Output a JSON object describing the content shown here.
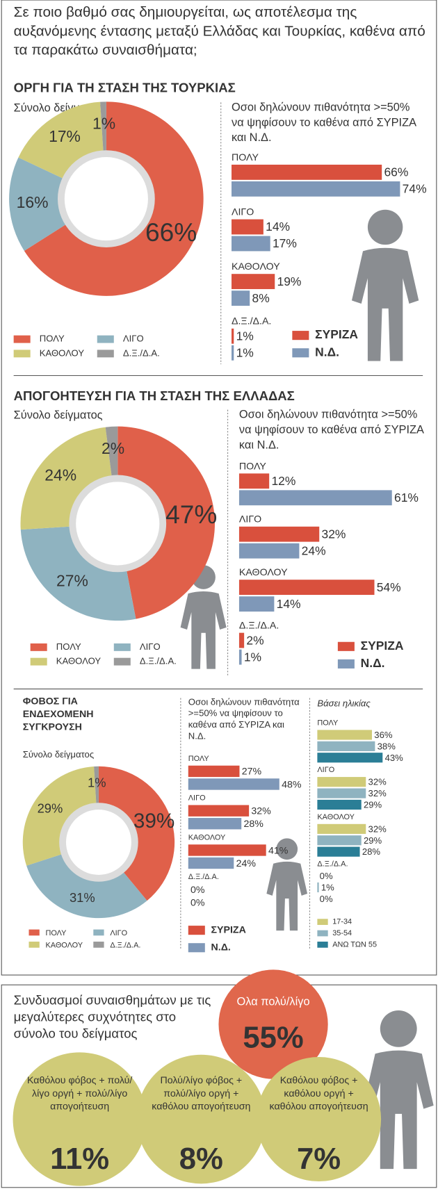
{
  "header": {
    "question": "Σε ποιο βαθμό σας δημιουργείται, ως αποτέλεσμα της αυξανόμενης έντασης μεταξύ Ελλάδας και Τουρκίας, καθένα από τα παρακάτω συναισθήματα;"
  },
  "sections": [
    "ΟΡΓΗ ΓΙΑ ΤΗ ΣΤΑΣΗ ΤΗΣ ΤΟΥΡΚΙΑΣ",
    "ΑΠΟΓΟΗΤΕΥΣΗ ΓΙΑ ΤΗ ΣΤΑΣΗ ΤΗΣ ΕΛΛΑΔΑΣ",
    "ΦΟΒΟΣ ΓΙΑ ΕΝΔΕΧΟΜΕΝΗ ΣΥΓΚΡΟΥΣΗ"
  ],
  "chart_data": [
    {
      "type": "pie",
      "title": "Σύνολο δείγματος",
      "categories": [
        "ΠΟΛΥ",
        "ΛΙΓΟ",
        "ΚΑΘΟΛΟΥ",
        "Δ.Ξ./Δ.Α."
      ],
      "values": [
        66,
        16,
        17,
        1
      ],
      "value_labels": [
        "66%",
        "16%",
        "17%",
        "1%"
      ],
      "colors": [
        "#e0604a",
        "#8fb3c0",
        "#d0cb78",
        "#9a9a9a"
      ]
    },
    {
      "type": "bar",
      "title": "Οσοι δηλώνουν πιθανότητα >=50% να ψηφίσουν το καθένα από ΣΥΡΙΖΑ και Ν.Δ.",
      "categories": [
        "ΠΟΛΥ",
        "ΛΙΓΟ",
        "ΚΑΘΟΛΟΥ",
        "Δ.Ξ./Δ.Α."
      ],
      "series": [
        {
          "name": "ΣΥΡΙΖΑ",
          "color": "#d9503d",
          "values": [
            66,
            14,
            19,
            1
          ],
          "value_labels": [
            "66%",
            "14%",
            "19%",
            "1%"
          ]
        },
        {
          "name": "Ν.Δ.",
          "color": "#7f98b8",
          "values": [
            74,
            17,
            8,
            1
          ],
          "value_labels": [
            "74%",
            "17%",
            "8%",
            "1%"
          ]
        }
      ]
    },
    {
      "type": "pie",
      "title": "Σύνολο δείγματος",
      "categories": [
        "ΠΟΛΥ",
        "ΛΙΓΟ",
        "ΚΑΘΟΛΟΥ",
        "Δ.Ξ./Δ.Α."
      ],
      "values": [
        47,
        27,
        24,
        2
      ],
      "value_labels": [
        "47%",
        "27%",
        "24%",
        "2%"
      ],
      "colors": [
        "#e0604a",
        "#8fb3c0",
        "#d0cb78",
        "#9a9a9a"
      ]
    },
    {
      "type": "bar",
      "title": "Οσοι δηλώνουν πιθανότητα >=50% να ψηφίσουν το καθένα από ΣΥΡΙΖΑ και Ν.Δ.",
      "categories": [
        "ΠΟΛΥ",
        "ΛΙΓΟ",
        "ΚΑΘΟΛΟΥ",
        "Δ.Ξ./Δ.Α."
      ],
      "series": [
        {
          "name": "ΣΥΡΙΖΑ",
          "color": "#d9503d",
          "values": [
            12,
            32,
            54,
            2
          ],
          "value_labels": [
            "12%",
            "32%",
            "54%",
            "2%"
          ]
        },
        {
          "name": "Ν.Δ.",
          "color": "#7f98b8",
          "values": [
            61,
            24,
            14,
            1
          ],
          "value_labels": [
            "61%",
            "24%",
            "14%",
            "1%"
          ]
        }
      ]
    },
    {
      "type": "pie",
      "title": "Σύνολο δείγματος",
      "categories": [
        "ΠΟΛΥ",
        "ΛΙΓΟ",
        "ΚΑΘΟΛΟΥ",
        "Δ.Ξ./Δ.Α."
      ],
      "values": [
        39,
        31,
        29,
        1
      ],
      "value_labels": [
        "39%",
        "31%",
        "29%",
        "1%"
      ],
      "colors": [
        "#e0604a",
        "#8fb3c0",
        "#d0cb78",
        "#9a9a9a"
      ]
    },
    {
      "type": "bar",
      "title": "Οσοι δηλώνουν πιθανότητα >=50% να ψηφίσουν το καθένα από ΣΥΡΙΖΑ και Ν.Δ.",
      "categories": [
        "ΠΟΛΥ",
        "ΛΙΓΟ",
        "ΚΑΘΟΛΟΥ",
        "Δ.Ξ./Δ.Α."
      ],
      "series": [
        {
          "name": "ΣΥΡΙΖΑ",
          "color": "#d9503d",
          "values": [
            27,
            32,
            41,
            0
          ],
          "value_labels": [
            "27%",
            "32%",
            "41%",
            "0%"
          ]
        },
        {
          "name": "Ν.Δ.",
          "color": "#7f98b8",
          "values": [
            48,
            28,
            24,
            0
          ],
          "value_labels": [
            "48%",
            "28%",
            "24%",
            "0%"
          ]
        }
      ]
    },
    {
      "type": "bar",
      "title": "Βάσει ηλικίας",
      "categories": [
        "ΠΟΛΥ",
        "ΛΙΓΟ",
        "ΚΑΘΟΛΟΥ",
        "Δ.Ξ./Δ.Α."
      ],
      "series": [
        {
          "name": "17-34",
          "color": "#d0cb78",
          "values": [
            36,
            32,
            32,
            0
          ],
          "value_labels": [
            "36%",
            "32%",
            "32%",
            "0%"
          ]
        },
        {
          "name": "35-54",
          "color": "#8fb3c0",
          "values": [
            38,
            32,
            29,
            1
          ],
          "value_labels": [
            "38%",
            "32%",
            "29%",
            "1%"
          ]
        },
        {
          "name": "ΑΝΩ ΤΩΝ 55",
          "color": "#2b7e96",
          "values": [
            43,
            29,
            28,
            0
          ],
          "value_labels": [
            "43%",
            "29%",
            "28%",
            "0%"
          ]
        }
      ]
    }
  ],
  "combinations": {
    "title": "Συνδυασμοί συναισθημάτων με τις μεγαλύτερες συχνότητες στο σύνολο του δείγματος",
    "items": [
      {
        "label": "Ολα πολύ/λίγο",
        "value": "55%"
      },
      {
        "label": "Καθόλου φόβος + πολύ/λίγο οργή + πολύ/λίγο απογοήτευση",
        "value": "11%"
      },
      {
        "label": "Πολύ/λίγο φόβος + πολύ/λίγο οργή + καθόλου απογοήτευση",
        "value": "8%"
      },
      {
        "label": "Καθόλου φόβος + καθόλου οργή + καθόλου απογοήτευση",
        "value": "7%"
      }
    ]
  }
}
